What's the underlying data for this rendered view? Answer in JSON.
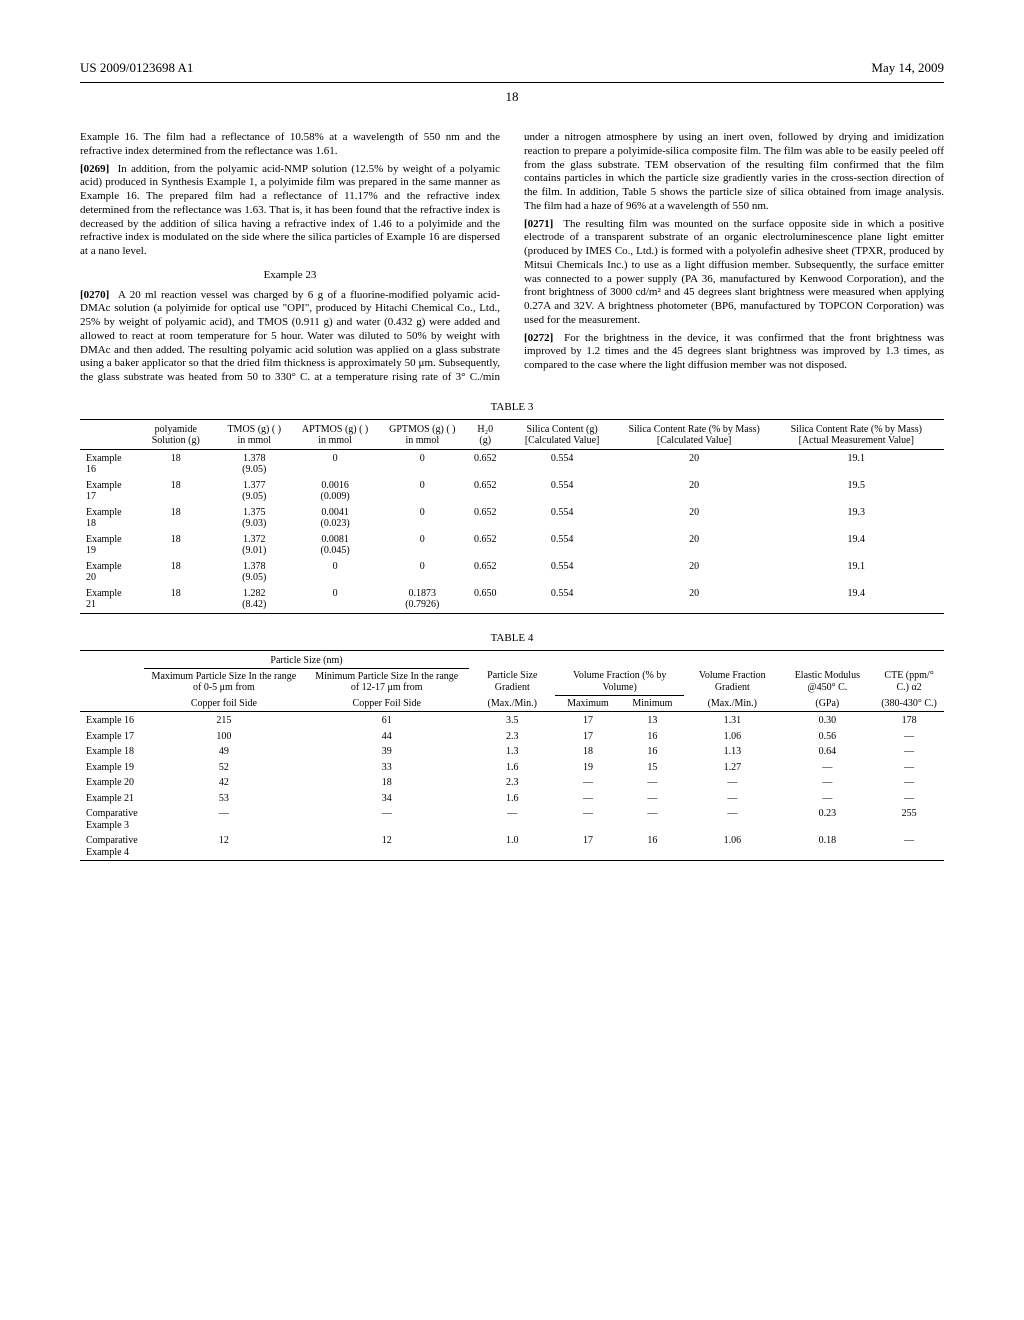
{
  "header": {
    "patent_number": "US 2009/0123698 A1",
    "date": "May 14, 2009",
    "page": "18"
  },
  "body": {
    "p1": "Example 16. The film had a reflectance of 10.58% at a wavelength of 550 nm and the refractive index determined from the reflectance was 1.61.",
    "p2_num": "[0269]",
    "p2": "In addition, from the polyamic acid-NMP solution (12.5% by weight of a polyamic acid) produced in Synthesis Example 1, a polyimide film was prepared in the same manner as Example 16. The prepared film had a reflectance of 11.17% and the refractive index determined from the reflectance was 1.63. That is, it has been found that the refractive index is decreased by the addition of silica having a refractive index of 1.46 to a polyimide and the refractive index is modulated on the side where the silica particles of Example 16 are dispersed at a nano level.",
    "ex23": "Example 23",
    "p3_num": "[0270]",
    "p3": "A 20 ml reaction vessel was charged by 6 g of a fluorine-modified polyamic acid-DMAc solution (a polyimide for optical use \"OPI\", produced by Hitachi Chemical Co., Ltd., 25% by weight of polyamic acid), and TMOS (0.911 g) and water (0.432 g) were added and allowed to react at room temperature for 5 hour. Water was diluted to 50% by weight with DMAc and then added. The resulting polyamic acid solution was applied on a glass substrate using a baker applicator so that the dried film thickness is approximately 50 μm. Subsequently, the glass substrate was heated from 50 to 330° C. at a temperature rising rate of 3° C./min under a nitrogen atmosphere by using an inert oven, followed by drying and imidization reaction to prepare a polyimide-silica composite film. The film was able to be easily peeled off from the glass substrate. TEM observation of the resulting film confirmed that the film contains particles in which the particle size gradiently varies in the cross-section direction of the film. In addition, Table 5 shows the particle size of silica obtained from image analysis. The film had a haze of 96% at a wavelength of 550 nm.",
    "p4_num": "[0271]",
    "p4": "The resulting film was mounted on the surface opposite side in which a positive electrode of a transparent substrate of an organic electroluminescence plane light emitter (produced by IMES Co., Ltd.) is formed with a polyolefin adhesive sheet (TPXR, produced by Mitsui Chemicals Inc.) to use as a light diffusion member. Subsequently, the surface emitter was connected to a power supply (PA 36, manufactured by Kenwood Corporation), and the front brightness of 3000 cd/m² and 45 degrees slant brightness were measured when applying 0.27A and 32V. A brightness photometer (BP6, manufactured by TOPCON Corporation) was used for the measurement.",
    "p5_num": "[0272]",
    "p5": "For the brightness in the device, it was confirmed that the front brightness was improved by 1.2 times and the 45 degrees slant brightness was improved by 1.3 times, as compared to the case where the light diffusion member was not disposed."
  },
  "table3": {
    "caption": "TABLE 3",
    "columns": {
      "c1": "polyamide Solution (g)",
      "c2": "TMOS (g) ( ) in mmol",
      "c3": "APTMOS (g) ( ) in mmol",
      "c4": "GPTMOS (g) ( ) in mmol",
      "c5": "H₂0 (g)",
      "c6": "Silica Content (g) [Calculated Value]",
      "c7": "Silica Content Rate (% by Mass) [Calculated Value]",
      "c8": "Silica Content Rate (% by Mass) [Actual Measurement Value]"
    },
    "rows": [
      {
        "label": "Example 16",
        "c1": "18",
        "c2a": "1.378",
        "c2b": "(9.05)",
        "c3a": "0",
        "c3b": "",
        "c4a": "0",
        "c4b": "",
        "c5": "0.652",
        "c6": "0.554",
        "c7": "20",
        "c8": "19.1"
      },
      {
        "label": "Example 17",
        "c1": "18",
        "c2a": "1.377",
        "c2b": "(9.05)",
        "c3a": "0.0016",
        "c3b": "(0.009)",
        "c4a": "0",
        "c4b": "",
        "c5": "0.652",
        "c6": "0.554",
        "c7": "20",
        "c8": "19.5"
      },
      {
        "label": "Example 18",
        "c1": "18",
        "c2a": "1.375",
        "c2b": "(9.03)",
        "c3a": "0.0041",
        "c3b": "(0.023)",
        "c4a": "0",
        "c4b": "",
        "c5": "0.652",
        "c6": "0.554",
        "c7": "20",
        "c8": "19.3"
      },
      {
        "label": "Example 19",
        "c1": "18",
        "c2a": "1.372",
        "c2b": "(9.01)",
        "c3a": "0.0081",
        "c3b": "(0.045)",
        "c4a": "0",
        "c4b": "",
        "c5": "0.652",
        "c6": "0.554",
        "c7": "20",
        "c8": "19.4"
      },
      {
        "label": "Example 20",
        "c1": "18",
        "c2a": "1.378",
        "c2b": "(9.05)",
        "c3a": "0",
        "c3b": "",
        "c4a": "0",
        "c4b": "",
        "c5": "0.652",
        "c6": "0.554",
        "c7": "20",
        "c8": "19.1"
      },
      {
        "label": "Example 21",
        "c1": "18",
        "c2a": "1.282",
        "c2b": "(8.42)",
        "c3a": "0",
        "c3b": "",
        "c4a": "0.1873",
        "c4b": "(0.7926)",
        "c5": "0.650",
        "c6": "0.554",
        "c7": "20",
        "c8": "19.4"
      }
    ]
  },
  "table4": {
    "caption": "TABLE 4",
    "group_header": "Particle Size (nm)",
    "columns": {
      "c1a": "Maximum Particle Size In the range of 0-5 μm from",
      "c1b": "Copper foil Side",
      "c2a": "Minimum Particle Size In the range of 12-17 μm from",
      "c2b": "Copper Foil Side",
      "c3a": "Particle Size Gradient",
      "c3b": "(Max./Min.)",
      "c4a": "Volume Fraction (% by Volume)",
      "c4b": "Maximum",
      "c4c": "Minimum",
      "c5a": "Volume Fraction Gradient",
      "c5b": "(Max./Min.)",
      "c6a": "Elastic Modulus @450° C.",
      "c6b": "(GPa)",
      "c7a": "CTE (ppm/° C.) α2",
      "c7b": "(380-430° C.)"
    },
    "rows": [
      {
        "label": "Example 16",
        "c1": "215",
        "c2": "61",
        "c3": "3.5",
        "c4": "17",
        "c5": "13",
        "c6": "1.31",
        "c7": "0.30",
        "c8": "178"
      },
      {
        "label": "Example 17",
        "c1": "100",
        "c2": "44",
        "c3": "2.3",
        "c4": "17",
        "c5": "16",
        "c6": "1.06",
        "c7": "0.56",
        "c8": "—"
      },
      {
        "label": "Example 18",
        "c1": "49",
        "c2": "39",
        "c3": "1.3",
        "c4": "18",
        "c5": "16",
        "c6": "1.13",
        "c7": "0.64",
        "c8": "—"
      },
      {
        "label": "Example 19",
        "c1": "52",
        "c2": "33",
        "c3": "1.6",
        "c4": "19",
        "c5": "15",
        "c6": "1.27",
        "c7": "—",
        "c8": "—"
      },
      {
        "label": "Example 20",
        "c1": "42",
        "c2": "18",
        "c3": "2.3",
        "c4": "—",
        "c5": "—",
        "c6": "—",
        "c7": "—",
        "c8": "—"
      },
      {
        "label": "Example 21",
        "c1": "53",
        "c2": "34",
        "c3": "1.6",
        "c4": "—",
        "c5": "—",
        "c6": "—",
        "c7": "—",
        "c8": "—"
      },
      {
        "label": "Comparative Example 3",
        "c1": "—",
        "c2": "—",
        "c3": "—",
        "c4": "—",
        "c5": "—",
        "c6": "—",
        "c7": "0.23",
        "c8": "255"
      },
      {
        "label": "Comparative Example 4",
        "c1": "12",
        "c2": "12",
        "c3": "1.0",
        "c4": "17",
        "c5": "16",
        "c6": "1.06",
        "c7": "0.18",
        "c8": "—"
      }
    ]
  }
}
